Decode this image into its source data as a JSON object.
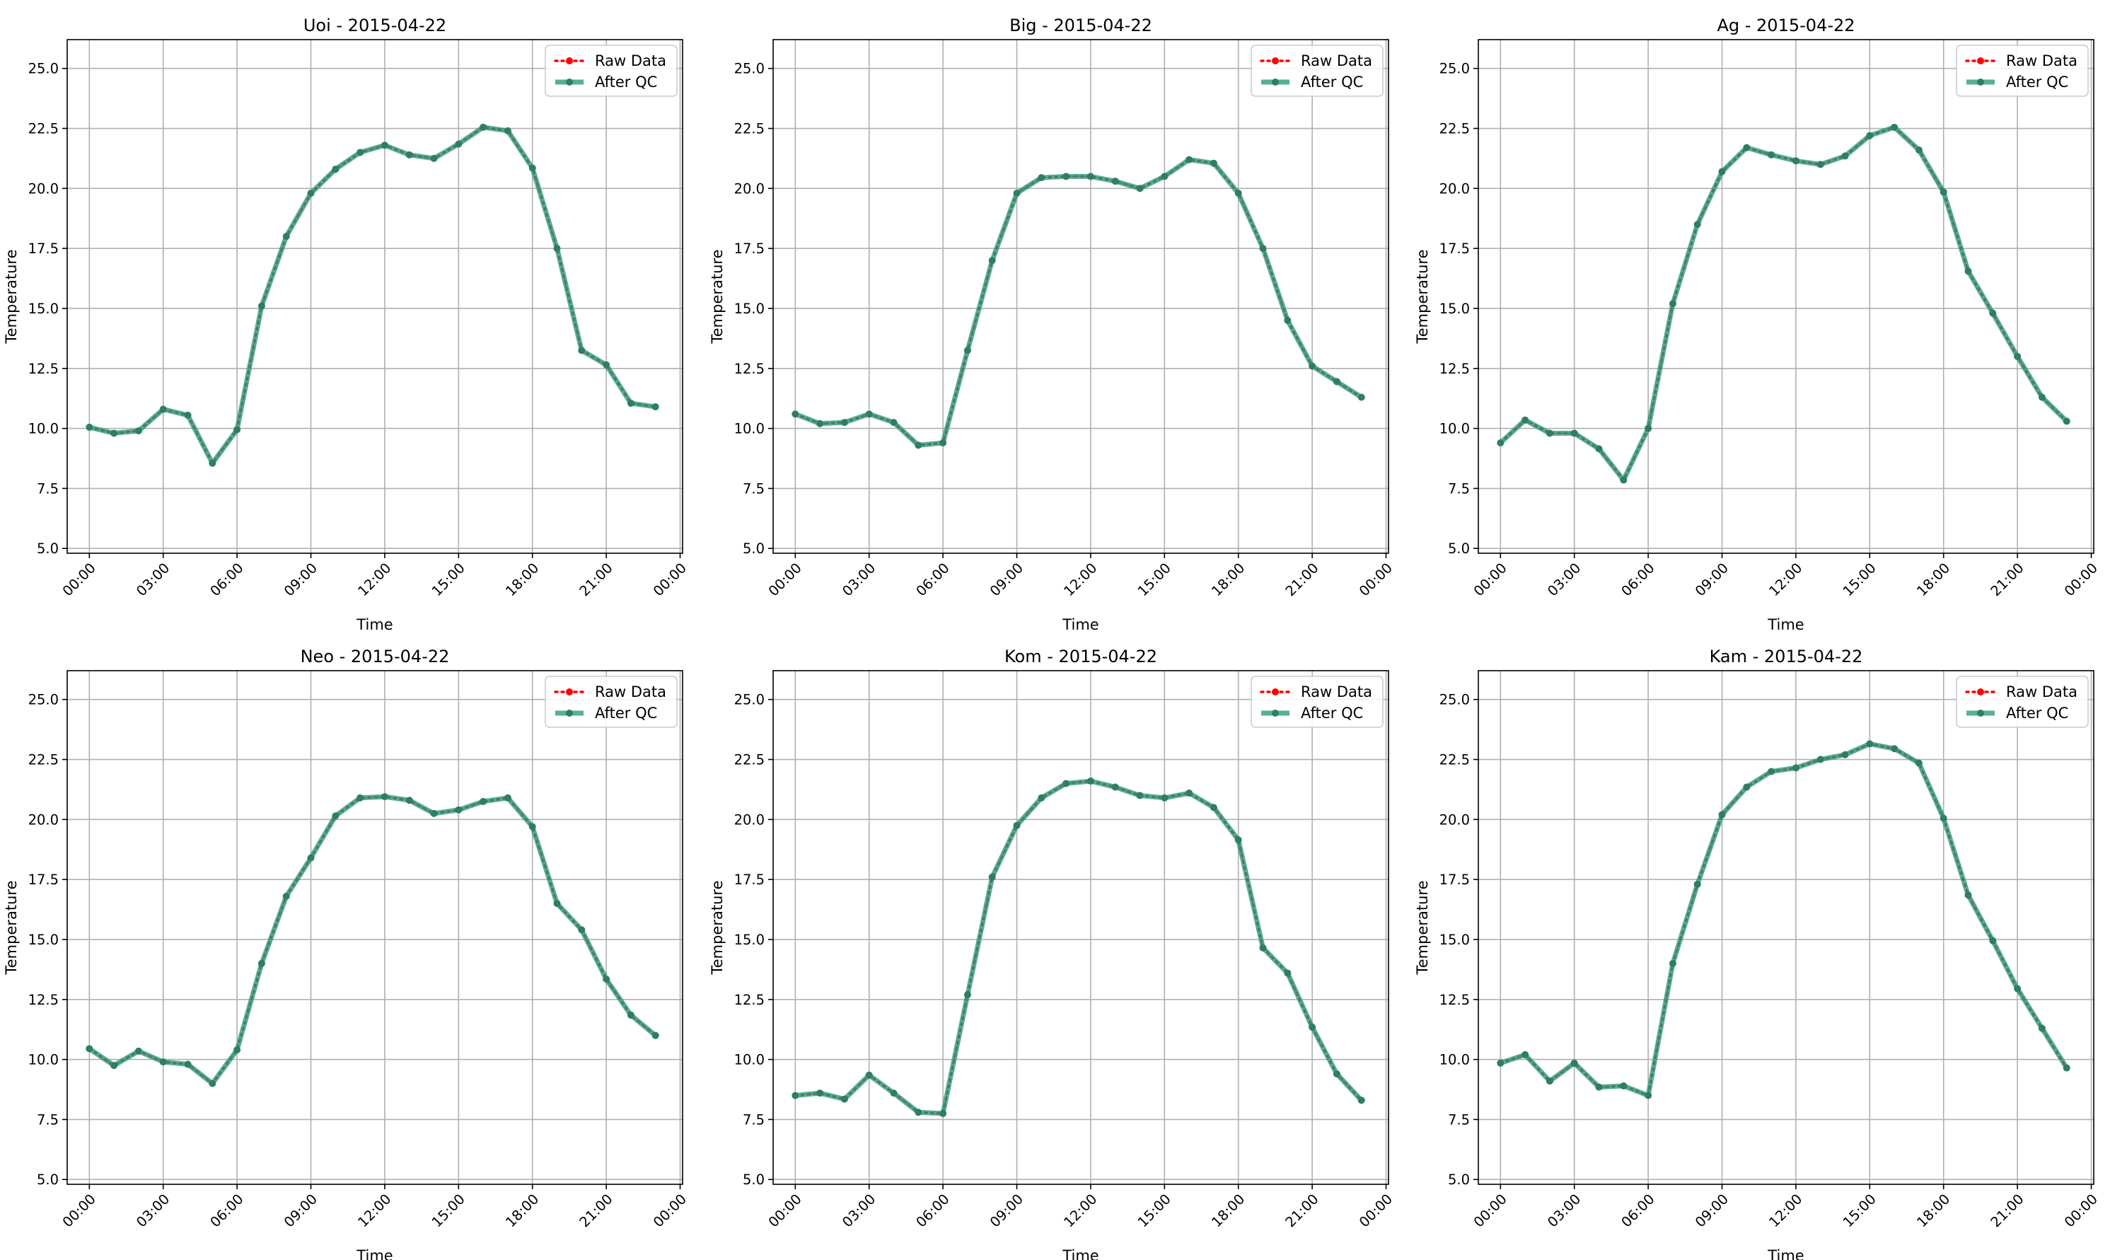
{
  "chart_data": [
    {
      "type": "line",
      "title": "Uoi - 2015-04-22",
      "xlabel": "Time",
      "ylabel": "Temperature",
      "xlim": [
        -0.9,
        24.1
      ],
      "ylim": [
        4.8,
        26.2
      ],
      "x": [
        0,
        1,
        2,
        3,
        4,
        5,
        6,
        7,
        8,
        9,
        10,
        11,
        12,
        13,
        14,
        15,
        16,
        17,
        18,
        19,
        20,
        21,
        22,
        23
      ],
      "xticks": [
        0,
        3,
        6,
        9,
        12,
        15,
        18,
        21,
        24
      ],
      "xticklabels": [
        "00:00",
        "03:00",
        "06:00",
        "09:00",
        "12:00",
        "15:00",
        "18:00",
        "21:00",
        "00:00"
      ],
      "yticks": [
        5.0,
        7.5,
        10.0,
        12.5,
        15.0,
        17.5,
        20.0,
        22.5,
        25.0
      ],
      "yticklabels": [
        "5.0",
        "7.5",
        "10.0",
        "12.5",
        "15.0",
        "17.5",
        "20.0",
        "22.5",
        "25.0"
      ],
      "grid": true,
      "legend": "top-right",
      "series": [
        {
          "name": "Raw Data",
          "color": "#ff0000",
          "values": [
            10.05,
            9.8,
            9.9,
            10.8,
            10.55,
            8.55,
            9.95,
            15.1,
            18.0,
            19.8,
            20.8,
            21.5,
            21.8,
            21.4,
            21.25,
            21.85,
            22.55,
            22.4,
            20.85,
            17.5,
            13.25,
            12.65,
            11.05,
            10.9
          ]
        },
        {
          "name": "After QC",
          "color": "#2a9d7c",
          "values": [
            10.05,
            9.8,
            9.9,
            10.8,
            10.55,
            8.55,
            9.95,
            15.1,
            18.0,
            19.8,
            20.8,
            21.5,
            21.8,
            21.4,
            21.25,
            21.85,
            22.55,
            22.4,
            20.85,
            17.5,
            13.25,
            12.65,
            11.05,
            10.9
          ]
        }
      ]
    },
    {
      "type": "line",
      "title": "Big - 2015-04-22",
      "xlabel": "Time",
      "ylabel": "Temperature",
      "xlim": [
        -0.9,
        24.1
      ],
      "ylim": [
        4.8,
        26.2
      ],
      "x": [
        0,
        1,
        2,
        3,
        4,
        5,
        6,
        7,
        8,
        9,
        10,
        11,
        12,
        13,
        14,
        15,
        16,
        17,
        18,
        19,
        20,
        21,
        22,
        23
      ],
      "xticks": [
        0,
        3,
        6,
        9,
        12,
        15,
        18,
        21,
        24
      ],
      "xticklabels": [
        "00:00",
        "03:00",
        "06:00",
        "09:00",
        "12:00",
        "15:00",
        "18:00",
        "21:00",
        "00:00"
      ],
      "yticks": [
        5.0,
        7.5,
        10.0,
        12.5,
        15.0,
        17.5,
        20.0,
        22.5,
        25.0
      ],
      "yticklabels": [
        "5.0",
        "7.5",
        "10.0",
        "12.5",
        "15.0",
        "17.5",
        "20.0",
        "22.5",
        "25.0"
      ],
      "grid": true,
      "legend": "top-right",
      "series": [
        {
          "name": "Raw Data",
          "color": "#ff0000",
          "values": [
            10.6,
            10.2,
            10.25,
            10.6,
            10.25,
            9.3,
            9.4,
            13.25,
            17.0,
            19.8,
            20.45,
            20.5,
            20.5,
            20.3,
            20.0,
            20.5,
            21.2,
            21.05,
            19.8,
            17.5,
            14.5,
            12.6,
            11.95,
            11.3
          ]
        },
        {
          "name": "After QC",
          "color": "#2a9d7c",
          "values": [
            10.6,
            10.2,
            10.25,
            10.6,
            10.25,
            9.3,
            9.4,
            13.25,
            17.0,
            19.8,
            20.45,
            20.5,
            20.5,
            20.3,
            20.0,
            20.5,
            21.2,
            21.05,
            19.8,
            17.5,
            14.5,
            12.6,
            11.95,
            11.3
          ]
        }
      ]
    },
    {
      "type": "line",
      "title": "Ag - 2015-04-22",
      "xlabel": "Time",
      "ylabel": "Temperature",
      "xlim": [
        -0.9,
        24.1
      ],
      "ylim": [
        4.8,
        26.2
      ],
      "x": [
        0,
        1,
        2,
        3,
        4,
        5,
        6,
        7,
        8,
        9,
        10,
        11,
        12,
        13,
        14,
        15,
        16,
        17,
        18,
        19,
        20,
        21,
        22,
        23
      ],
      "xticks": [
        0,
        3,
        6,
        9,
        12,
        15,
        18,
        21,
        24
      ],
      "xticklabels": [
        "00:00",
        "03:00",
        "06:00",
        "09:00",
        "12:00",
        "15:00",
        "18:00",
        "21:00",
        "00:00"
      ],
      "yticks": [
        5.0,
        7.5,
        10.0,
        12.5,
        15.0,
        17.5,
        20.0,
        22.5,
        25.0
      ],
      "yticklabels": [
        "5.0",
        "7.5",
        "10.0",
        "12.5",
        "15.0",
        "17.5",
        "20.0",
        "22.5",
        "25.0"
      ],
      "grid": true,
      "legend": "top-right",
      "series": [
        {
          "name": "Raw Data",
          "color": "#ff0000",
          "values": [
            9.4,
            10.35,
            9.8,
            9.8,
            9.15,
            7.85,
            10.0,
            15.2,
            18.5,
            20.7,
            21.7,
            21.4,
            21.15,
            21.0,
            21.35,
            22.2,
            22.55,
            21.6,
            19.85,
            16.55,
            14.8,
            13.0,
            11.3,
            10.3
          ]
        },
        {
          "name": "After QC",
          "color": "#2a9d7c",
          "values": [
            9.4,
            10.35,
            9.8,
            9.8,
            9.15,
            7.85,
            10.0,
            15.2,
            18.5,
            20.7,
            21.7,
            21.4,
            21.15,
            21.0,
            21.35,
            22.2,
            22.55,
            21.6,
            19.85,
            16.55,
            14.8,
            13.0,
            11.3,
            10.3
          ]
        }
      ]
    },
    {
      "type": "line",
      "title": "Neo - 2015-04-22",
      "xlabel": "Time",
      "ylabel": "Temperature",
      "xlim": [
        -0.9,
        24.1
      ],
      "ylim": [
        4.8,
        26.2
      ],
      "x": [
        0,
        1,
        2,
        3,
        4,
        5,
        6,
        7,
        8,
        9,
        10,
        11,
        12,
        13,
        14,
        15,
        16,
        17,
        18,
        19,
        20,
        21,
        22,
        23
      ],
      "xticks": [
        0,
        3,
        6,
        9,
        12,
        15,
        18,
        21,
        24
      ],
      "xticklabels": [
        "00:00",
        "03:00",
        "06:00",
        "09:00",
        "12:00",
        "15:00",
        "18:00",
        "21:00",
        "00:00"
      ],
      "yticks": [
        5.0,
        7.5,
        10.0,
        12.5,
        15.0,
        17.5,
        20.0,
        22.5,
        25.0
      ],
      "yticklabels": [
        "5.0",
        "7.5",
        "10.0",
        "12.5",
        "15.0",
        "17.5",
        "20.0",
        "22.5",
        "25.0"
      ],
      "grid": true,
      "legend": "top-right",
      "series": [
        {
          "name": "Raw Data",
          "color": "#ff0000",
          "values": [
            10.45,
            9.75,
            10.35,
            9.9,
            9.8,
            9.0,
            10.4,
            14.0,
            16.8,
            18.4,
            20.15,
            20.9,
            20.95,
            20.8,
            20.25,
            20.4,
            20.75,
            20.9,
            19.7,
            16.5,
            15.4,
            13.35,
            11.85,
            11.0
          ]
        },
        {
          "name": "After QC",
          "color": "#2a9d7c",
          "values": [
            10.45,
            9.75,
            10.35,
            9.9,
            9.8,
            9.0,
            10.4,
            14.0,
            16.8,
            18.4,
            20.15,
            20.9,
            20.95,
            20.8,
            20.25,
            20.4,
            20.75,
            20.9,
            19.7,
            16.5,
            15.4,
            13.35,
            11.85,
            11.0
          ]
        }
      ]
    },
    {
      "type": "line",
      "title": "Kom - 2015-04-22",
      "xlabel": "Time",
      "ylabel": "Temperature",
      "xlim": [
        -0.9,
        24.1
      ],
      "ylim": [
        4.8,
        26.2
      ],
      "x": [
        0,
        1,
        2,
        3,
        4,
        5,
        6,
        7,
        8,
        9,
        10,
        11,
        12,
        13,
        14,
        15,
        16,
        17,
        18,
        19,
        20,
        21,
        22,
        23
      ],
      "xticks": [
        0,
        3,
        6,
        9,
        12,
        15,
        18,
        21,
        24
      ],
      "xticklabels": [
        "00:00",
        "03:00",
        "06:00",
        "09:00",
        "12:00",
        "15:00",
        "18:00",
        "21:00",
        "00:00"
      ],
      "yticks": [
        5.0,
        7.5,
        10.0,
        12.5,
        15.0,
        17.5,
        20.0,
        22.5,
        25.0
      ],
      "yticklabels": [
        "5.0",
        "7.5",
        "10.0",
        "12.5",
        "15.0",
        "17.5",
        "20.0",
        "22.5",
        "25.0"
      ],
      "grid": true,
      "legend": "top-right",
      "series": [
        {
          "name": "Raw Data",
          "color": "#ff0000",
          "values": [
            8.5,
            8.6,
            8.35,
            9.35,
            8.6,
            7.8,
            7.75,
            12.7,
            17.6,
            19.75,
            20.9,
            21.5,
            21.6,
            21.35,
            21.0,
            20.9,
            21.1,
            20.5,
            19.15,
            14.65,
            13.6,
            11.35,
            9.4,
            8.3
          ]
        },
        {
          "name": "After QC",
          "color": "#2a9d7c",
          "values": [
            8.5,
            8.6,
            8.35,
            9.35,
            8.6,
            7.8,
            7.75,
            12.7,
            17.6,
            19.75,
            20.9,
            21.5,
            21.6,
            21.35,
            21.0,
            20.9,
            21.1,
            20.5,
            19.15,
            14.65,
            13.6,
            11.35,
            9.4,
            8.3
          ]
        }
      ]
    },
    {
      "type": "line",
      "title": "Kam - 2015-04-22",
      "xlabel": "Time",
      "ylabel": "Temperature",
      "xlim": [
        -0.9,
        24.1
      ],
      "ylim": [
        4.8,
        26.2
      ],
      "x": [
        0,
        1,
        2,
        3,
        4,
        5,
        6,
        7,
        8,
        9,
        10,
        11,
        12,
        13,
        14,
        15,
        16,
        17,
        18,
        19,
        20,
        21,
        22,
        23
      ],
      "xticks": [
        0,
        3,
        6,
        9,
        12,
        15,
        18,
        21,
        24
      ],
      "xticklabels": [
        "00:00",
        "03:00",
        "06:00",
        "09:00",
        "12:00",
        "15:00",
        "18:00",
        "21:00",
        "00:00"
      ],
      "yticks": [
        5.0,
        7.5,
        10.0,
        12.5,
        15.0,
        17.5,
        20.0,
        22.5,
        25.0
      ],
      "yticklabels": [
        "5.0",
        "7.5",
        "10.0",
        "12.5",
        "15.0",
        "17.5",
        "20.0",
        "22.5",
        "25.0"
      ],
      "grid": true,
      "legend": "top-right",
      "series": [
        {
          "name": "Raw Data",
          "color": "#ff0000",
          "values": [
            9.85,
            10.2,
            9.1,
            9.85,
            8.85,
            8.9,
            8.5,
            14.0,
            17.3,
            20.2,
            21.35,
            22.0,
            22.15,
            22.5,
            22.7,
            23.15,
            22.95,
            22.35,
            20.05,
            16.85,
            14.95,
            12.95,
            11.3,
            9.65
          ]
        },
        {
          "name": "After QC",
          "color": "#2a9d7c",
          "values": [
            9.85,
            10.2,
            9.1,
            9.85,
            8.85,
            8.9,
            8.5,
            14.0,
            17.3,
            20.2,
            21.35,
            22.0,
            22.15,
            22.5,
            22.7,
            23.15,
            22.95,
            22.35,
            20.05,
            16.85,
            14.95,
            12.95,
            11.3,
            9.65
          ]
        }
      ]
    }
  ]
}
